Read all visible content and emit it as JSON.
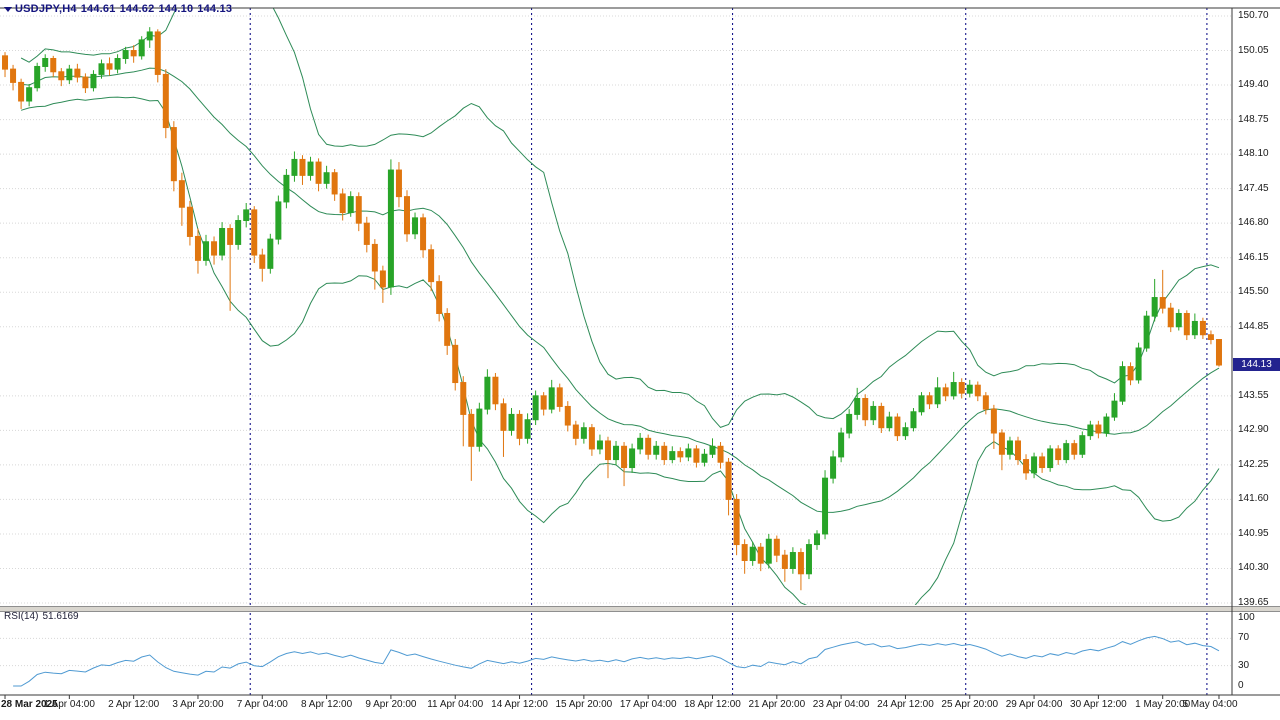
{
  "window": {
    "symbol_period": "USDJPY,H4",
    "open": "144.61",
    "high": "144.62",
    "low": "144.10",
    "close": "144.13"
  },
  "price_axis": {
    "labels": [
      "150.70",
      "150.05",
      "149.40",
      "148.75",
      "148.10",
      "147.45",
      "146.80",
      "146.15",
      "145.50",
      "144.85",
      "143.55",
      "142.90",
      "142.25",
      "141.60",
      "140.95",
      "140.30",
      "139.65"
    ],
    "current_price": "144.13"
  },
  "rsi": {
    "label": "RSI(14)",
    "value": "51.6169",
    "scale_labels": [
      "100",
      "70",
      "30",
      "0"
    ]
  },
  "colors": {
    "bull": "#28a428",
    "bear": "#e0760f",
    "bollinger": "#2E8B57",
    "rsi_line": "#4f9ad2",
    "separator": "#000080",
    "grid": "#d8d8d8",
    "frame": "#3a3a3a",
    "badge_bg": "#23238F",
    "title_text": "#14147E"
  },
  "chart_data": {
    "type": "candlestick",
    "symbol": "USDJPY",
    "timeframe": "H4",
    "title": "USDJPY,H4 144.61 144.62 144.10 144.13",
    "ylim": [
      139.65,
      150.7
    ],
    "grid": true,
    "week_separators": [
      31,
      66,
      91,
      120,
      150
    ],
    "time_labels": [
      {
        "i": 0,
        "t": "28 Mar 2025"
      },
      {
        "i": 8,
        "t": "1 Apr 04:00"
      },
      {
        "i": 16,
        "t": "2 Apr 12:00"
      },
      {
        "i": 24,
        "t": "3 Apr 20:00"
      },
      {
        "i": 32,
        "t": "7 Apr 04:00"
      },
      {
        "i": 40,
        "t": "8 Apr 12:00"
      },
      {
        "i": 48,
        "t": "9 Apr 20:00"
      },
      {
        "i": 56,
        "t": "11 Apr 04:00"
      },
      {
        "i": 64,
        "t": "14 Apr 12:00"
      },
      {
        "i": 72,
        "t": "15 Apr 20:00"
      },
      {
        "i": 80,
        "t": "17 Apr 04:00"
      },
      {
        "i": 88,
        "t": "18 Apr 12:00"
      },
      {
        "i": 96,
        "t": "21 Apr 20:00"
      },
      {
        "i": 104,
        "t": "23 Apr 04:00"
      },
      {
        "i": 112,
        "t": "24 Apr 12:00"
      },
      {
        "i": 120,
        "t": "25 Apr 20:00"
      },
      {
        "i": 128,
        "t": "29 Apr 04:00"
      },
      {
        "i": 136,
        "t": "30 Apr 12:00"
      },
      {
        "i": 144,
        "t": "1 May 20:00"
      },
      {
        "i": 151,
        "t": "5 May 04:00"
      }
    ],
    "indicators": [
      {
        "name": "Bollinger Bands",
        "period": 20,
        "deviation": 2
      },
      {
        "name": "RSI",
        "period": 14,
        "value": 51.6169,
        "scale": [
          0,
          100
        ],
        "levels": [
          70,
          30
        ]
      }
    ],
    "ohlc": [
      [
        149.95,
        150.02,
        149.55,
        149.7
      ],
      [
        149.7,
        149.78,
        149.3,
        149.45
      ],
      [
        149.45,
        149.52,
        148.95,
        149.1
      ],
      [
        149.1,
        149.42,
        149.0,
        149.35
      ],
      [
        149.35,
        149.82,
        149.28,
        149.75
      ],
      [
        149.75,
        149.98,
        149.65,
        149.9
      ],
      [
        149.9,
        149.95,
        149.55,
        149.65
      ],
      [
        149.65,
        149.72,
        149.38,
        149.5
      ],
      [
        149.5,
        149.78,
        149.42,
        149.7
      ],
      [
        149.7,
        149.8,
        149.45,
        149.55
      ],
      [
        149.55,
        149.62,
        149.25,
        149.35
      ],
      [
        149.35,
        149.68,
        149.28,
        149.6
      ],
      [
        149.6,
        149.88,
        149.52,
        149.8
      ],
      [
        149.8,
        149.92,
        149.58,
        149.7
      ],
      [
        149.7,
        149.98,
        149.62,
        149.9
      ],
      [
        149.9,
        150.12,
        149.8,
        150.05
      ],
      [
        150.05,
        150.15,
        149.82,
        149.95
      ],
      [
        149.95,
        150.32,
        149.88,
        150.25
      ],
      [
        150.25,
        150.49,
        150.1,
        150.4
      ],
      [
        150.4,
        150.45,
        149.45,
        149.6
      ],
      [
        149.6,
        149.7,
        148.4,
        148.6
      ],
      [
        148.6,
        148.72,
        147.4,
        147.6
      ],
      [
        147.6,
        147.75,
        146.75,
        147.1
      ],
      [
        147.1,
        147.22,
        146.38,
        146.55
      ],
      [
        146.55,
        146.7,
        145.85,
        146.1
      ],
      [
        146.1,
        146.58,
        146.0,
        146.45
      ],
      [
        146.45,
        146.55,
        146.02,
        146.2
      ],
      [
        146.2,
        146.82,
        146.1,
        146.7
      ],
      [
        146.7,
        146.78,
        145.15,
        146.4
      ],
      [
        146.4,
        146.95,
        146.3,
        146.85
      ],
      [
        146.85,
        147.18,
        146.72,
        147.05
      ],
      [
        147.05,
        147.12,
        146.05,
        146.2
      ],
      [
        146.2,
        146.32,
        145.7,
        145.95
      ],
      [
        145.95,
        146.6,
        145.85,
        146.5
      ],
      [
        146.5,
        147.32,
        146.4,
        147.2
      ],
      [
        147.2,
        147.82,
        147.08,
        147.7
      ],
      [
        147.7,
        148.15,
        147.58,
        148.0
      ],
      [
        148.0,
        148.08,
        147.52,
        147.7
      ],
      [
        147.7,
        148.05,
        147.6,
        147.95
      ],
      [
        147.95,
        148.02,
        147.4,
        147.55
      ],
      [
        147.55,
        147.88,
        147.45,
        147.75
      ],
      [
        147.75,
        147.82,
        147.22,
        147.35
      ],
      [
        147.35,
        147.45,
        146.85,
        147.0
      ],
      [
        147.0,
        147.4,
        146.92,
        147.3
      ],
      [
        147.3,
        147.38,
        146.65,
        146.8
      ],
      [
        146.8,
        146.92,
        146.25,
        146.4
      ],
      [
        146.4,
        146.5,
        145.55,
        145.9
      ],
      [
        145.9,
        146.0,
        145.3,
        145.6
      ],
      [
        145.6,
        148.0,
        145.45,
        147.8
      ],
      [
        147.8,
        147.95,
        147.1,
        147.3
      ],
      [
        147.3,
        147.42,
        146.45,
        146.6
      ],
      [
        146.6,
        147.0,
        146.5,
        146.9
      ],
      [
        146.9,
        146.98,
        146.15,
        146.3
      ],
      [
        146.3,
        146.4,
        145.52,
        145.7
      ],
      [
        145.7,
        145.82,
        144.95,
        145.1
      ],
      [
        145.1,
        145.2,
        144.32,
        144.5
      ],
      [
        144.5,
        144.62,
        143.65,
        143.8
      ],
      [
        143.8,
        143.92,
        142.6,
        143.2
      ],
      [
        143.2,
        143.3,
        141.95,
        142.6
      ],
      [
        142.6,
        143.42,
        142.5,
        143.3
      ],
      [
        143.3,
        144.05,
        143.2,
        143.9
      ],
      [
        143.9,
        143.98,
        143.28,
        143.4
      ],
      [
        143.4,
        143.5,
        142.4,
        142.9
      ],
      [
        142.9,
        143.32,
        142.8,
        143.2
      ],
      [
        143.2,
        143.28,
        142.62,
        142.75
      ],
      [
        142.75,
        143.22,
        142.65,
        143.1
      ],
      [
        143.1,
        143.65,
        143.0,
        143.55
      ],
      [
        143.55,
        143.62,
        143.18,
        143.3
      ],
      [
        143.3,
        143.85,
        143.22,
        143.7
      ],
      [
        143.7,
        143.78,
        143.25,
        143.35
      ],
      [
        143.35,
        143.45,
        142.88,
        143.0
      ],
      [
        143.0,
        143.08,
        142.62,
        142.75
      ],
      [
        142.75,
        143.05,
        142.65,
        142.95
      ],
      [
        142.95,
        143.02,
        142.42,
        142.55
      ],
      [
        142.55,
        142.82,
        142.45,
        142.7
      ],
      [
        142.7,
        142.78,
        142.0,
        142.35
      ],
      [
        142.35,
        142.7,
        142.25,
        142.6
      ],
      [
        142.6,
        142.68,
        141.85,
        142.2
      ],
      [
        142.2,
        142.65,
        142.1,
        142.55
      ],
      [
        142.55,
        142.85,
        142.45,
        142.75
      ],
      [
        142.75,
        142.82,
        142.35,
        142.45
      ],
      [
        142.45,
        142.7,
        142.35,
        142.6
      ],
      [
        142.6,
        142.68,
        142.25,
        142.35
      ],
      [
        142.35,
        142.6,
        142.28,
        142.5
      ],
      [
        142.5,
        142.58,
        142.3,
        142.4
      ],
      [
        142.4,
        142.65,
        142.32,
        142.55
      ],
      [
        142.55,
        142.62,
        142.2,
        142.3
      ],
      [
        142.3,
        142.55,
        142.22,
        142.45
      ],
      [
        142.45,
        142.75,
        142.38,
        142.6
      ],
      [
        142.6,
        142.68,
        142.18,
        142.3
      ],
      [
        142.3,
        142.38,
        141.3,
        141.6
      ],
      [
        141.6,
        141.7,
        140.55,
        140.75
      ],
      [
        140.75,
        140.85,
        140.2,
        140.45
      ],
      [
        140.45,
        140.8,
        140.35,
        140.7
      ],
      [
        140.7,
        140.78,
        140.25,
        140.4
      ],
      [
        140.4,
        140.95,
        140.3,
        140.85
      ],
      [
        140.85,
        140.92,
        140.42,
        140.55
      ],
      [
        140.55,
        140.65,
        140.05,
        140.3
      ],
      [
        140.3,
        140.7,
        140.2,
        140.6
      ],
      [
        140.6,
        140.68,
        139.89,
        140.2
      ],
      [
        140.2,
        140.85,
        140.1,
        140.75
      ],
      [
        140.75,
        141.02,
        140.65,
        140.95
      ],
      [
        140.95,
        142.15,
        140.85,
        142.0
      ],
      [
        142.0,
        142.52,
        141.9,
        142.4
      ],
      [
        142.4,
        142.95,
        142.3,
        142.85
      ],
      [
        142.85,
        143.3,
        142.75,
        143.2
      ],
      [
        143.2,
        143.7,
        143.1,
        143.5
      ],
      [
        143.5,
        143.58,
        142.98,
        143.1
      ],
      [
        143.1,
        143.45,
        143.0,
        143.35
      ],
      [
        143.35,
        143.42,
        142.85,
        142.95
      ],
      [
        142.95,
        143.25,
        142.88,
        143.15
      ],
      [
        143.15,
        143.22,
        142.7,
        142.8
      ],
      [
        142.8,
        143.05,
        142.72,
        142.95
      ],
      [
        142.95,
        143.32,
        142.88,
        143.25
      ],
      [
        143.25,
        143.62,
        143.18,
        143.55
      ],
      [
        143.55,
        143.62,
        143.3,
        143.4
      ],
      [
        143.4,
        143.9,
        143.32,
        143.7
      ],
      [
        143.7,
        143.78,
        143.45,
        143.55
      ],
      [
        143.55,
        144.0,
        143.48,
        143.8
      ],
      [
        143.8,
        143.88,
        143.5,
        143.6
      ],
      [
        143.6,
        143.85,
        143.52,
        143.75
      ],
      [
        143.75,
        143.82,
        143.45,
        143.55
      ],
      [
        143.55,
        143.62,
        143.2,
        143.3
      ],
      [
        143.3,
        143.38,
        142.55,
        142.85
      ],
      [
        142.85,
        142.92,
        142.15,
        142.45
      ],
      [
        142.45,
        142.78,
        142.35,
        142.7
      ],
      [
        142.7,
        142.78,
        142.25,
        142.35
      ],
      [
        142.35,
        142.45,
        141.97,
        142.1
      ],
      [
        142.1,
        142.48,
        142.0,
        142.4
      ],
      [
        142.4,
        142.48,
        142.1,
        142.2
      ],
      [
        142.2,
        142.62,
        142.12,
        142.55
      ],
      [
        142.55,
        142.62,
        142.25,
        142.35
      ],
      [
        142.35,
        142.72,
        142.28,
        142.65
      ],
      [
        142.65,
        142.72,
        142.35,
        142.45
      ],
      [
        142.45,
        142.88,
        142.38,
        142.8
      ],
      [
        142.8,
        143.08,
        142.72,
        143.0
      ],
      [
        143.0,
        143.08,
        142.75,
        142.85
      ],
      [
        142.85,
        143.22,
        142.78,
        143.15
      ],
      [
        143.15,
        143.6,
        143.08,
        143.45
      ],
      [
        143.45,
        144.2,
        143.38,
        144.1
      ],
      [
        144.1,
        144.18,
        143.75,
        143.85
      ],
      [
        143.85,
        144.55,
        143.78,
        144.45
      ],
      [
        144.45,
        145.15,
        144.38,
        145.05
      ],
      [
        145.05,
        145.75,
        144.95,
        145.4
      ],
      [
        145.4,
        145.92,
        145.1,
        145.2
      ],
      [
        145.2,
        145.3,
        144.75,
        144.85
      ],
      [
        144.85,
        145.18,
        144.78,
        145.1
      ],
      [
        145.1,
        145.16,
        144.6,
        144.7
      ],
      [
        144.7,
        145.1,
        144.62,
        144.95
      ],
      [
        144.95,
        145.02,
        144.62,
        144.7
      ],
      [
        144.7,
        144.78,
        144.52,
        144.61
      ],
      [
        144.61,
        144.62,
        144.1,
        144.13
      ]
    ]
  }
}
